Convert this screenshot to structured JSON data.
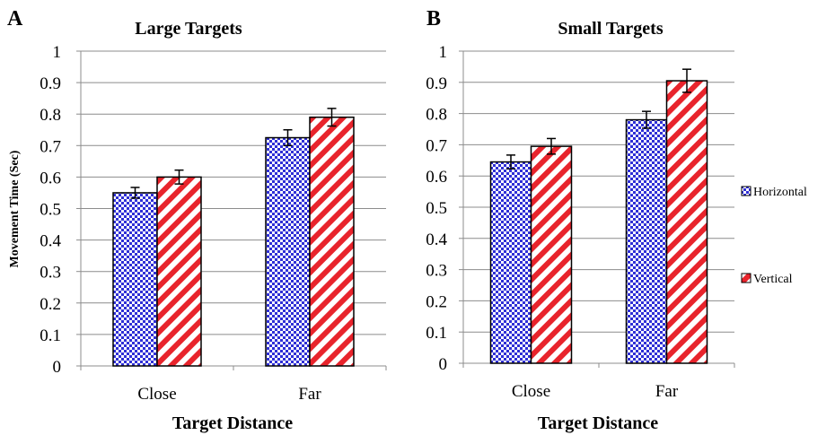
{
  "chart_data": [
    {
      "type": "bar",
      "panel_label": "A",
      "title": "Large Targets",
      "categories": [
        "Close",
        "Far"
      ],
      "series": [
        {
          "name": "Horizontal",
          "values": [
            0.55,
            0.725
          ],
          "errors": [
            0.017,
            0.025
          ]
        },
        {
          "name": "Vertical",
          "values": [
            0.6,
            0.79
          ],
          "errors": [
            0.022,
            0.028
          ]
        }
      ],
      "xlabel": "Target Distance",
      "ylabel": "Movement Time (Sec)",
      "ylim": [
        0,
        1
      ],
      "yticks": [
        "0",
        "0.1",
        "0.2",
        "0.3",
        "0.4",
        "0.5",
        "0.6",
        "0.7",
        "0.8",
        "0.9",
        "1"
      ],
      "grid": true
    },
    {
      "type": "bar",
      "panel_label": "B",
      "title": "Small Targets",
      "categories": [
        "Close",
        "Far"
      ],
      "series": [
        {
          "name": "Horizontal",
          "values": [
            0.645,
            0.78
          ],
          "errors": [
            0.022,
            0.027
          ]
        },
        {
          "name": "Vertical",
          "values": [
            0.695,
            0.905
          ],
          "errors": [
            0.025,
            0.037
          ]
        }
      ],
      "xlabel": "Target Distance",
      "ylabel": "",
      "ylim": [
        0,
        1
      ],
      "yticks": [
        "0",
        "0.1",
        "0.2",
        "0.3",
        "0.4",
        "0.5",
        "0.6",
        "0.7",
        "0.8",
        "0.9",
        "1"
      ],
      "grid": true,
      "legend_position": "right"
    }
  ],
  "colors": {
    "horizontal": "#2f2fd6",
    "vertical": "#e8242c",
    "grid": "#8c8c8c"
  }
}
